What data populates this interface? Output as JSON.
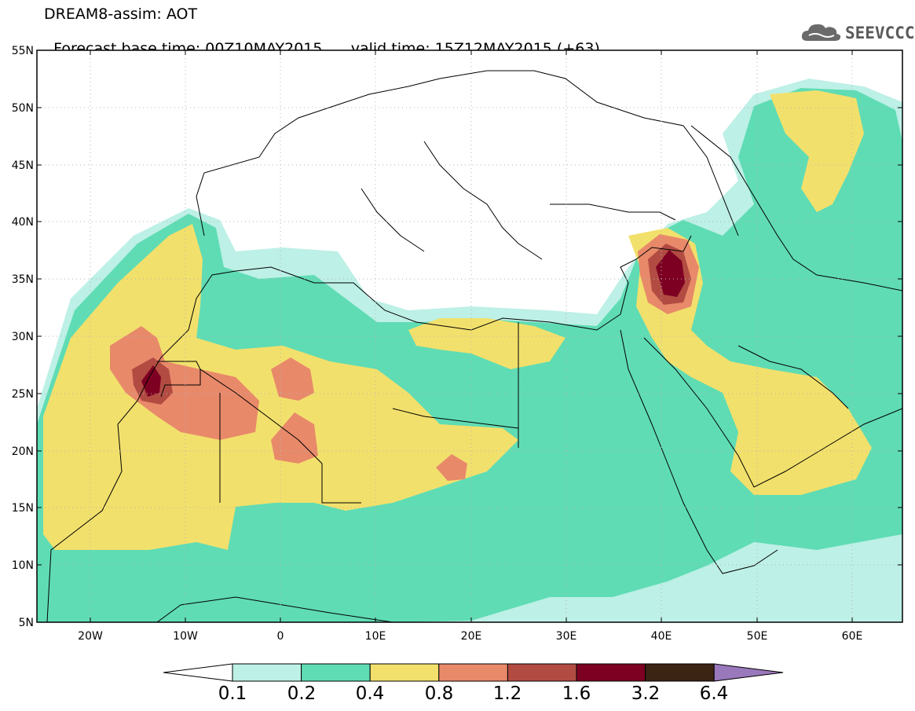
{
  "header": {
    "model_title": "DREAM8-assim: AOT",
    "forecast_base": "Forecast base time: 00Z10MAY2015",
    "valid_time": "valid time: 15Z12MAY2015 (+63)"
  },
  "logo": {
    "text": "SEEVCCC",
    "icon": "cloud-icon"
  },
  "axes": {
    "lat_labels": [
      "55N",
      "50N",
      "45N",
      "40N",
      "35N",
      "30N",
      "25N",
      "20N",
      "15N",
      "10N",
      "5N"
    ],
    "lon_labels": [
      "20W",
      "10W",
      "0",
      "10E",
      "20E",
      "30E",
      "40E",
      "50E",
      "60E"
    ]
  },
  "colorbar": {
    "labels": [
      "0.1",
      "0.2",
      "0.4",
      "0.8",
      "1.2",
      "1.6",
      "3.2",
      "6.4"
    ],
    "colors": [
      "#bdf0e6",
      "#5fdcb4",
      "#f2e06c",
      "#e8896a",
      "#b24c42",
      "#7d0022",
      "#3c2414",
      "#9a78bc"
    ]
  },
  "map_colors": {
    "c1": "#bdf0e6",
    "c2": "#5fdcb4",
    "c3": "#f2e06c",
    "c4": "#e8896a",
    "c5": "#b24c42",
    "c6": "#7d0022"
  }
}
